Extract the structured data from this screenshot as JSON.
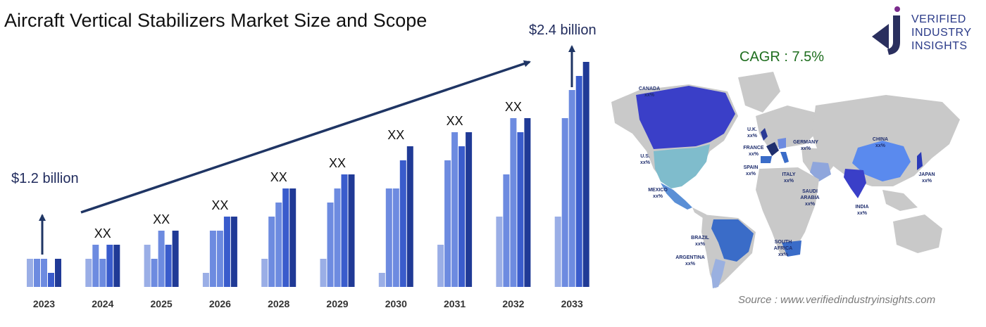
{
  "title": "Aircraft Vertical Stabilizers Market Size and Scope",
  "cagr": "CAGR : 7.5%",
  "source": "Source : www.verifiedindustryinsights.com",
  "logo": {
    "line1": "VERIFIED",
    "line2": "INDUSTRY",
    "line3": "INSIGHTS",
    "icon": "vi-logo-icon"
  },
  "colors": {
    "c1": "#9aaee6",
    "c2": "#6d8be0",
    "c3": "#3a5ccc",
    "c4": "#203a96",
    "arrow": "#1f3564",
    "cagr": "#1f6e1f"
  },
  "chart_data": {
    "type": "bar",
    "categories": [
      "2023",
      "2024",
      "2025",
      "2026",
      "2028",
      "2029",
      "2030",
      "2031",
      "2032",
      "2033"
    ],
    "series": [
      {
        "values": [
          2,
          2,
          3,
          1,
          2,
          2,
          1,
          3,
          5,
          5
        ]
      },
      {
        "values": [
          2,
          3,
          2,
          4,
          5,
          6,
          7,
          9,
          8,
          12
        ]
      },
      {
        "values": [
          2,
          2,
          4,
          4,
          6,
          7,
          7,
          11,
          12,
          14
        ]
      },
      {
        "values": [
          1,
          3,
          3,
          5,
          7,
          8,
          9,
          10,
          11,
          15
        ]
      },
      {
        "values": [
          2,
          3,
          4,
          5,
          7,
          8,
          10,
          11,
          12,
          16
        ]
      }
    ],
    "bar_labels": [
      "",
      "XX",
      "XX",
      "XX",
      "XX",
      "XX",
      "XX",
      "XX",
      "XX",
      ""
    ],
    "annotations": {
      "start": "$1.2 billion",
      "end": "$2.4 billion"
    },
    "ylim": [
      0,
      16
    ]
  },
  "map_labels": [
    {
      "name": "CANADA",
      "value": "xx%"
    },
    {
      "name": "U.S.",
      "value": "xx%"
    },
    {
      "name": "MEXICO",
      "value": "xx%"
    },
    {
      "name": "BRAZIL",
      "value": "xx%"
    },
    {
      "name": "ARGENTINA",
      "value": "xx%"
    },
    {
      "name": "U.K.",
      "value": "xx%"
    },
    {
      "name": "FRANCE",
      "value": "xx%"
    },
    {
      "name": "SPAIN",
      "value": "xx%"
    },
    {
      "name": "GERMANY",
      "value": "xx%"
    },
    {
      "name": "ITALY",
      "value": "xx%"
    },
    {
      "name": "SAUDI",
      "value": "ARABIA"
    },
    {
      "name": "SOUTH",
      "value": "AFRICA"
    },
    {
      "name": "CHINA",
      "value": "xx%"
    },
    {
      "name": "INDIA",
      "value": "xx%"
    },
    {
      "name": "JAPAN",
      "value": "xx%"
    }
  ],
  "map_extra": {
    "saudi_value": "xx%",
    "sa_value": "xx%"
  }
}
